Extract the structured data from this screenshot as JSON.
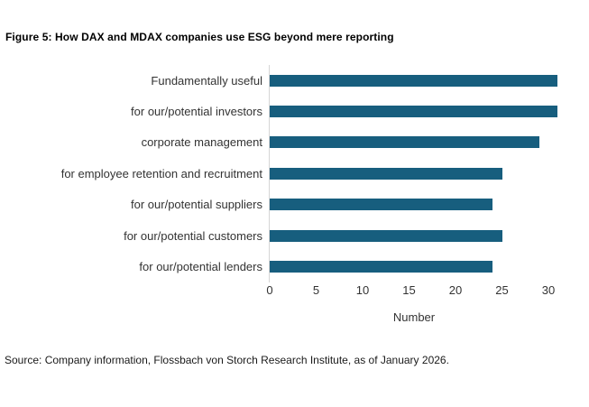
{
  "figure": {
    "title": "Figure 5: How DAX and MDAX companies use ESG beyond mere reporting",
    "source": "Source: Company information, Flossbach von Storch Research Institute, as of January 2026."
  },
  "chart_data": {
    "type": "bar",
    "orientation": "horizontal",
    "title": "Figure 5: How DAX and MDAX companies use ESG beyond mere reporting",
    "categories": [
      "Fundamentally useful",
      "for our/potential investors",
      "corporate management",
      "for employee retention and recruitment",
      "for our/potential suppliers",
      "for our/potential customers",
      "for our/potential lenders"
    ],
    "values": [
      31,
      31,
      29,
      25,
      24,
      25,
      24
    ],
    "xlabel": "Number",
    "ylabel": "",
    "xticks": [
      0,
      5,
      10,
      15,
      20,
      25,
      30
    ],
    "xlim": [
      0,
      32
    ],
    "grid": false,
    "legend": "none",
    "bar_color": "#175E7E",
    "axis_line_color": "#D6D6D6"
  }
}
